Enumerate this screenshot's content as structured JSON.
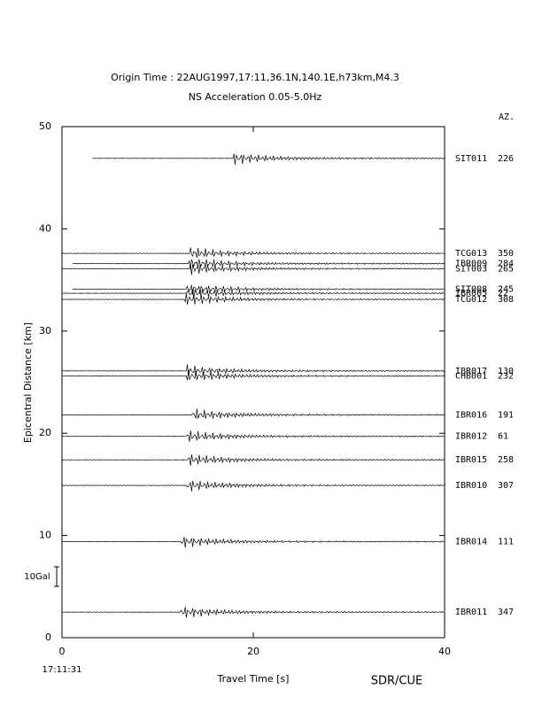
{
  "chart_data": {
    "type": "record-section",
    "title": "Origin Time : 22AUG1997,17:11,36.1N,140.1E,h73km,M4.3",
    "subtitle": "NS Acceleration 0.05-5.0Hz",
    "xlabel": "Travel Time [s]",
    "ylabel": "Epicentral Distance [km]",
    "azimuth_header": "AZ.",
    "start_time": "17:11:31",
    "scale_label": "10Gal",
    "credit": "SDR/CUE",
    "xlim": [
      0,
      40
    ],
    "xticks": [
      0,
      20,
      40
    ],
    "ylim": [
      0,
      50
    ],
    "yticks": [
      0,
      10,
      20,
      30,
      40,
      50
    ],
    "color": "#000000",
    "traces": [
      {
        "station": "SIT011",
        "azimuth": 226,
        "distance": 46.9,
        "start": 3.2,
        "onset": 17.8
      },
      {
        "station": "TCG013",
        "azimuth": 350,
        "distance": 37.6,
        "start": 0,
        "onset": 13.4
      },
      {
        "station": "IBR009",
        "azimuth": 284,
        "distance": 36.6,
        "start": 1.1,
        "onset": 13.3
      },
      {
        "station": "SIT003",
        "azimuth": 265,
        "distance": 36.1,
        "start": 0,
        "onset": 13.3
      },
      {
        "station": "SIT008",
        "azimuth": 245,
        "distance": 34.1,
        "start": 1.1,
        "onset": 13.0
      },
      {
        "station": "IBR005",
        "azimuth": 22,
        "distance": 33.7,
        "start": 0,
        "onset": 13.0
      },
      {
        "station": "TCG012",
        "azimuth": 308,
        "distance": 33.1,
        "start": 0,
        "onset": 12.8
      },
      {
        "station": "IBR017",
        "azimuth": 130,
        "distance": 26.1,
        "start": 0,
        "onset": 13.0
      },
      {
        "station": "CHB001",
        "azimuth": 232,
        "distance": 25.6,
        "start": 0,
        "onset": 13.0
      },
      {
        "station": "IBR016",
        "azimuth": 191,
        "distance": 21.8,
        "start": 0,
        "onset": 13.6
      },
      {
        "station": "IBR012",
        "azimuth": 61,
        "distance": 19.7,
        "start": 0,
        "onset": 13.0
      },
      {
        "station": "IBR015",
        "azimuth": 258,
        "distance": 17.4,
        "start": 0,
        "onset": 13.2
      },
      {
        "station": "IBR010",
        "azimuth": 307,
        "distance": 14.9,
        "start": 0,
        "onset": 13.0
      },
      {
        "station": "IBR014",
        "azimuth": 111,
        "distance": 9.4,
        "start": 0,
        "onset": 12.4
      },
      {
        "station": "IBR011",
        "azimuth": 347,
        "distance": 2.5,
        "start": 0,
        "onset": 12.4
      }
    ]
  }
}
